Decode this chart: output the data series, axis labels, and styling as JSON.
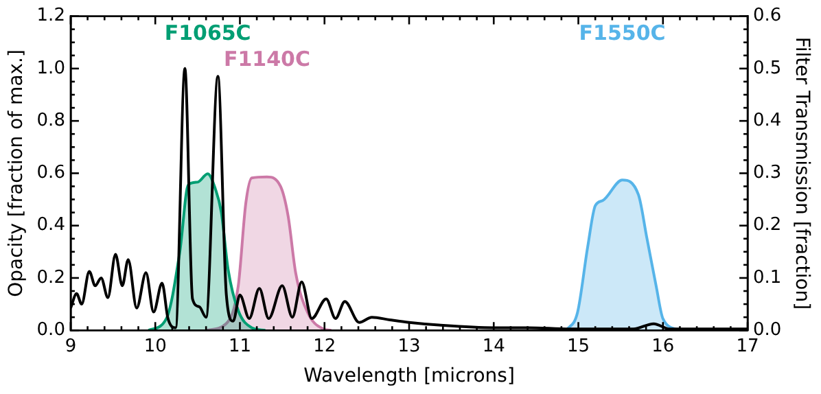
{
  "chart_data": {
    "type": "line",
    "xlabel": "Wavelength [microns]",
    "ylabel": "Opacity [fraction of max.]",
    "y2label": "Filter Transmission [fraction]",
    "xlim": [
      9,
      17
    ],
    "xticks": [
      9,
      10,
      11,
      12,
      13,
      14,
      15,
      16,
      17
    ],
    "ylim": [
      0,
      1.2
    ],
    "yticks": [
      {
        "value": 0,
        "label": "0.0"
      },
      {
        "value": 0.2,
        "label": "0.2"
      },
      {
        "value": 0.4,
        "label": "0.4"
      },
      {
        "value": 0.6,
        "label": "0.6"
      },
      {
        "value": 0.8,
        "label": "0.8"
      },
      {
        "value": 1,
        "label": "1.0"
      },
      {
        "value": 1.2,
        "label": "1.2"
      }
    ],
    "y2lim": [
      0,
      0.6
    ],
    "y2ticks": [
      {
        "value": 0,
        "label": "0.0"
      },
      {
        "value": 0.1,
        "label": "0.1"
      },
      {
        "value": 0.2,
        "label": "0.2"
      },
      {
        "value": 0.3,
        "label": "0.3"
      },
      {
        "value": 0.4,
        "label": "0.4"
      },
      {
        "value": 0.5,
        "label": "0.5"
      },
      {
        "value": 0.6,
        "label": "0.6"
      }
    ],
    "grid": false,
    "legend": false,
    "marker": "none",
    "line_style": "solid",
    "series": [
      {
        "color": "#000000",
        "x": [
          9.0,
          9.07,
          9.13,
          9.22,
          9.29,
          9.36,
          9.44,
          9.53,
          9.61,
          9.68,
          9.78,
          9.89,
          9.98,
          10.08,
          10.15,
          10.24,
          10.35,
          10.44,
          10.52,
          10.6,
          10.74,
          10.84,
          10.92,
          11.0,
          11.11,
          11.23,
          11.34,
          11.5,
          11.62,
          11.73,
          11.85,
          12.02,
          12.13,
          12.24,
          12.41,
          12.56,
          12.77,
          13.0,
          13.35,
          14.0,
          14.4,
          14.9,
          15.65,
          15.89,
          16.08,
          16.93,
          17.0
        ],
        "values": [
          0.085,
          0.14,
          0.1,
          0.225,
          0.17,
          0.2,
          0.125,
          0.29,
          0.17,
          0.27,
          0.085,
          0.22,
          0.07,
          0.18,
          0.045,
          0.01,
          1.0,
          0.12,
          0.09,
          0.05,
          0.97,
          0.135,
          0.035,
          0.135,
          0.045,
          0.16,
          0.045,
          0.17,
          0.05,
          0.185,
          0.045,
          0.12,
          0.045,
          0.11,
          0.03,
          0.05,
          0.04,
          0.03,
          0.02,
          0.01,
          0.01,
          0.005,
          0.005,
          0.025,
          0.005,
          0.005,
          0.005
        ]
      },
      {
        "type": "area",
        "axis": "y2",
        "name": "F1065C",
        "color": "#009e73",
        "x": [
          9.92,
          10.13,
          10.29,
          10.39,
          10.5,
          10.62,
          10.71,
          10.78,
          10.86,
          10.98,
          11.14,
          11.3
        ],
        "values": [
          0,
          0.022,
          0.15,
          0.278,
          0.283,
          0.299,
          0.27,
          0.226,
          0.117,
          0.038,
          0.005,
          0
        ]
      },
      {
        "type": "area",
        "axis": "y2",
        "name": "F1140C",
        "color": "#cc79a7",
        "x": [
          10.6,
          10.84,
          10.98,
          11.07,
          11.14,
          11.32,
          11.48,
          11.57,
          11.66,
          11.8,
          11.98,
          12.08
        ],
        "values": [
          0,
          0.013,
          0.084,
          0.243,
          0.291,
          0.293,
          0.275,
          0.218,
          0.109,
          0.034,
          0.003,
          0
        ]
      },
      {
        "type": "area",
        "axis": "y2",
        "name": "F1550C",
        "color": "#56b4e9",
        "x": [
          14.86,
          14.99,
          15.11,
          15.2,
          15.29,
          15.52,
          15.71,
          15.81,
          15.92,
          16.0,
          16.19
        ],
        "values": [
          0,
          0.034,
          0.159,
          0.238,
          0.248,
          0.287,
          0.259,
          0.176,
          0.084,
          0.022,
          0
        ]
      }
    ]
  }
}
